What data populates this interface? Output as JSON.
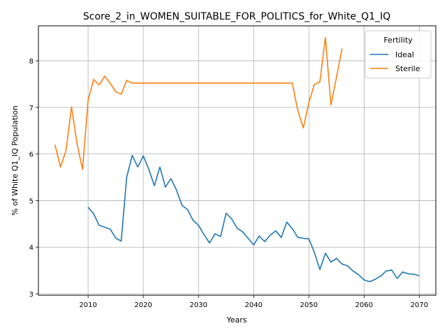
{
  "chart_data": {
    "type": "line",
    "title": "Score_2_in_WOMEN_SUITABLE_FOR_POLITICS_for_White_Q1_IQ",
    "xlabel": "Years",
    "ylabel": "% of White Q1_IQ Population",
    "xlim": [
      2001,
      2073
    ],
    "ylim": [
      2.97,
      8.75
    ],
    "xticks": [
      2010,
      2020,
      2030,
      2040,
      2050,
      2060,
      2070
    ],
    "yticks": [
      3,
      4,
      5,
      6,
      7,
      8
    ],
    "grid": true,
    "legend": {
      "title": "Fertility",
      "position": "top-right"
    },
    "series": [
      {
        "name": "Ideal",
        "color": "#1f77b4",
        "x": [
          2010,
          2011,
          2012,
          2013,
          2014,
          2015,
          2016,
          2017,
          2018,
          2019,
          2020,
          2021,
          2022,
          2023,
          2024,
          2025,
          2026,
          2027,
          2028,
          2029,
          2030,
          2031,
          2032,
          2033,
          2034,
          2035,
          2036,
          2037,
          2038,
          2039,
          2040,
          2041,
          2042,
          2043,
          2044,
          2045,
          2046,
          2047,
          2048,
          2049,
          2050,
          2051,
          2052,
          2053,
          2054,
          2055,
          2056,
          2057,
          2058,
          2059,
          2060,
          2061,
          2062,
          2063,
          2064,
          2065,
          2066,
          2067,
          2068,
          2069,
          2070
        ],
        "y": [
          4.86,
          4.72,
          4.47,
          4.43,
          4.39,
          4.2,
          4.13,
          5.5,
          5.97,
          5.72,
          5.96,
          5.67,
          5.32,
          5.72,
          5.29,
          5.47,
          5.23,
          4.9,
          4.81,
          4.58,
          4.47,
          4.27,
          4.09,
          4.29,
          4.23,
          4.73,
          4.61,
          4.41,
          4.33,
          4.19,
          4.05,
          4.24,
          4.12,
          4.26,
          4.35,
          4.21,
          4.54,
          4.4,
          4.21,
          4.19,
          4.18,
          3.89,
          3.52,
          3.87,
          3.68,
          3.76,
          3.64,
          3.6,
          3.49,
          3.41,
          3.3,
          3.26,
          3.31,
          3.38,
          3.49,
          3.51,
          3.33,
          3.47,
          3.43,
          3.42,
          3.39
        ]
      },
      {
        "name": "Sterile",
        "color": "#ff7f0e",
        "x": [
          2004,
          2005,
          2006,
          2007,
          2008,
          2009,
          2010,
          2011,
          2012,
          2013,
          2014,
          2015,
          2016,
          2017,
          2018,
          2019,
          2020,
          2021,
          2022,
          2023,
          2024,
          2025,
          2026,
          2027,
          2028,
          2029,
          2030,
          2031,
          2032,
          2033,
          2034,
          2035,
          2036,
          2037,
          2038,
          2039,
          2040,
          2041,
          2042,
          2043,
          2044,
          2045,
          2046,
          2047,
          2048,
          2049,
          2050,
          2051,
          2052,
          2053,
          2054,
          2055,
          2056
        ],
        "y": [
          6.2,
          5.72,
          6.07,
          7.01,
          6.22,
          5.67,
          7.15,
          7.6,
          7.48,
          7.67,
          7.52,
          7.34,
          7.28,
          7.58,
          7.52,
          7.52,
          7.52,
          7.52,
          7.52,
          7.52,
          7.52,
          7.52,
          7.52,
          7.52,
          7.52,
          7.52,
          7.52,
          7.52,
          7.52,
          7.52,
          7.52,
          7.52,
          7.52,
          7.52,
          7.52,
          7.52,
          7.52,
          7.52,
          7.52,
          7.52,
          7.52,
          7.52,
          7.52,
          7.52,
          6.93,
          6.56,
          7.11,
          7.49,
          7.55,
          8.5,
          7.05,
          7.65,
          8.26
        ]
      }
    ]
  }
}
